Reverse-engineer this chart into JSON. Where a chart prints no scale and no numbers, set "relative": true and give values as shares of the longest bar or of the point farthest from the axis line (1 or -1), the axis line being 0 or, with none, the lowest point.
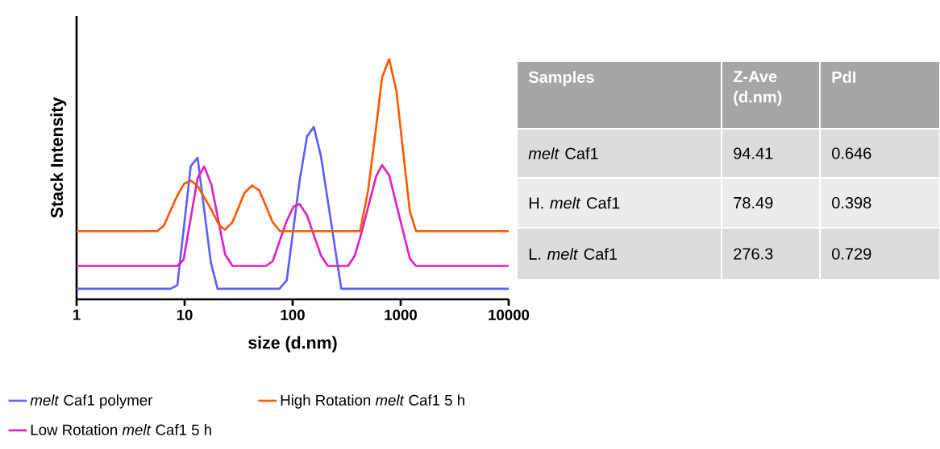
{
  "chart_data": [
    {
      "type": "line",
      "xlabel": "size (d.nm)",
      "ylabel": "Stack Intensity",
      "relative": true,
      "log": "x",
      "xlim": [
        1,
        10000
      ],
      "xticks": [
        1,
        10,
        100,
        1000,
        10000
      ],
      "legend": "bottom left",
      "series": [
        {
          "name": "*melt* Caf1 polymer",
          "color": "#5f5fff",
          "x": [
            1,
            7.43,
            8.57,
            11.4,
            13.2,
            17.5,
            20.2,
            75.5,
            88.2,
            116,
            136,
            157,
            183,
            282,
            10000
          ],
          "values": [
            0.044,
            0.044,
            0.059,
            0.555,
            0.589,
            0.153,
            0.044,
            0.044,
            0.079,
            0.494,
            0.678,
            0.718,
            0.595,
            0.044,
            0.044
          ]
        },
        {
          "name": "Low Rotation *melt* Caf1 5 h",
          "color": "#e020c0",
          "x": [
            1,
            8.57,
            9.78,
            13.2,
            15.2,
            17.7,
            23.7,
            27.7,
            56.7,
            65.4,
            87.1,
            102,
            116,
            136,
            183,
            212,
            326,
            376,
            433,
            594,
            673,
            782,
            1216,
            1386,
            10000
          ],
          "values": [
            0.139,
            0.139,
            0.165,
            0.505,
            0.553,
            0.477,
            0.187,
            0.139,
            0.139,
            0.159,
            0.321,
            0.386,
            0.397,
            0.349,
            0.182,
            0.139,
            0.139,
            0.182,
            0.276,
            0.513,
            0.559,
            0.517,
            0.17,
            0.139,
            0.139
          ]
        },
        {
          "name": "High Rotation *melt* Caf1 5 h",
          "color": "#ff5a00",
          "x": [
            1,
            5.57,
            6.43,
            8.57,
            9.89,
            11.4,
            13.2,
            17.5,
            20.8,
            23.6,
            27.7,
            35.9,
            42.1,
            49.2,
            65.4,
            76.3,
            421,
            500,
            587,
            673,
            782,
            913,
            1216,
            1386,
            10000
          ],
          "values": [
            0.284,
            0.284,
            0.307,
            0.433,
            0.481,
            0.494,
            0.472,
            0.377,
            0.31,
            0.29,
            0.321,
            0.444,
            0.474,
            0.453,
            0.321,
            0.284,
            0.284,
            0.455,
            0.701,
            0.924,
            1,
            0.868,
            0.366,
            0.284,
            0.284
          ]
        }
      ]
    },
    {
      "type": "other",
      "annotations": [
        "Samples",
        "Z-Ave (d.nm)",
        "PdI",
        "*melt* Caf1",
        "94.41",
        "0.646",
        "H. *melt* Caf1",
        "78.49",
        "0.398",
        "L. *melt* Caf1",
        "276.3",
        "0.729"
      ]
    }
  ]
}
